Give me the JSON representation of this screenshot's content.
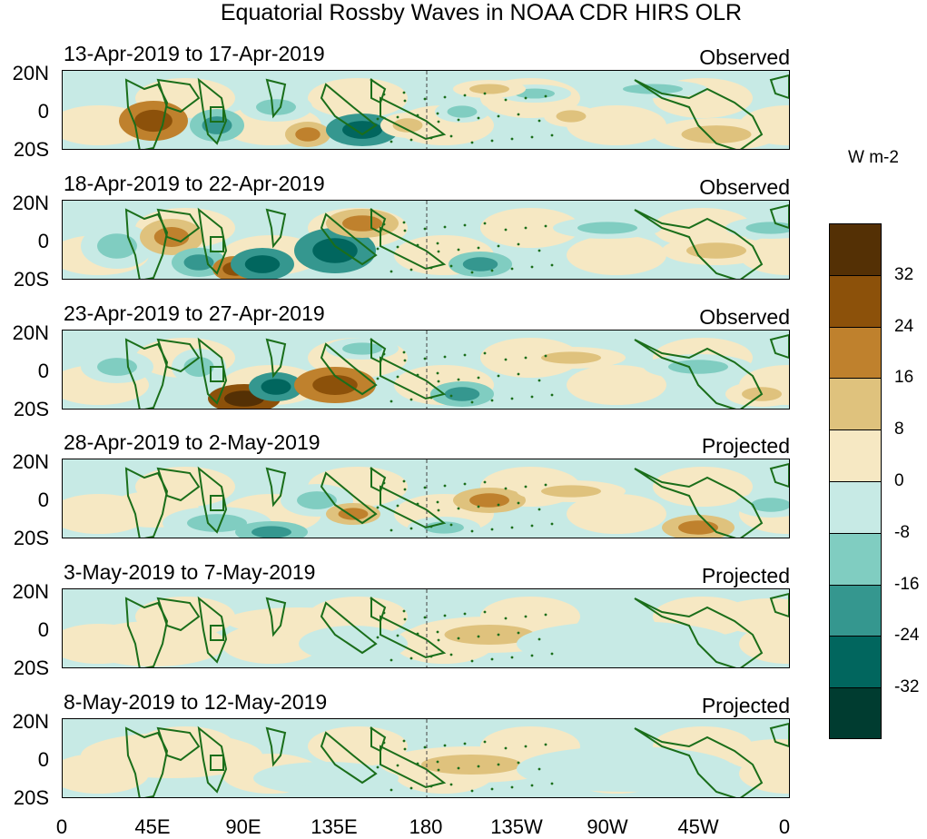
{
  "title": "Equatorial Rossby Waves in NOAA CDR HIRS OLR",
  "panels": [
    {
      "dates": "13-Apr-2019 to 17-Apr-2019",
      "status": "Observed"
    },
    {
      "dates": "18-Apr-2019 to 22-Apr-2019",
      "status": "Observed"
    },
    {
      "dates": "23-Apr-2019 to 27-Apr-2019",
      "status": "Observed"
    },
    {
      "dates": "28-Apr-2019 to 2-May-2019",
      "status": "Projected"
    },
    {
      "dates": "3-May-2019 to 7-May-2019",
      "status": "Projected"
    },
    {
      "dates": "8-May-2019 to 12-May-2019",
      "status": "Projected"
    }
  ],
  "lat_labels": [
    "20N",
    "0",
    "20S"
  ],
  "lon_labels": [
    "0",
    "45E",
    "90E",
    "135E",
    "180",
    "135W",
    "90W",
    "45W",
    "0"
  ],
  "legend": {
    "unit": "W m-2",
    "ticks": [
      "32",
      "24",
      "16",
      "8",
      "0",
      "-8",
      "-16",
      "-24",
      "-32"
    ],
    "colors": [
      "#543005",
      "#8c510a",
      "#bf812d",
      "#dfc27d",
      "#f6e8c3",
      "#c7eae5",
      "#80cdc1",
      "#35978f",
      "#01665e",
      "#003c30"
    ]
  },
  "map_colors": {
    "land_outline": "#1a6e1a",
    "neutral_pos": "#f6e8c3",
    "neutral_neg": "#c7eae5",
    "dateline": "#444444"
  }
}
